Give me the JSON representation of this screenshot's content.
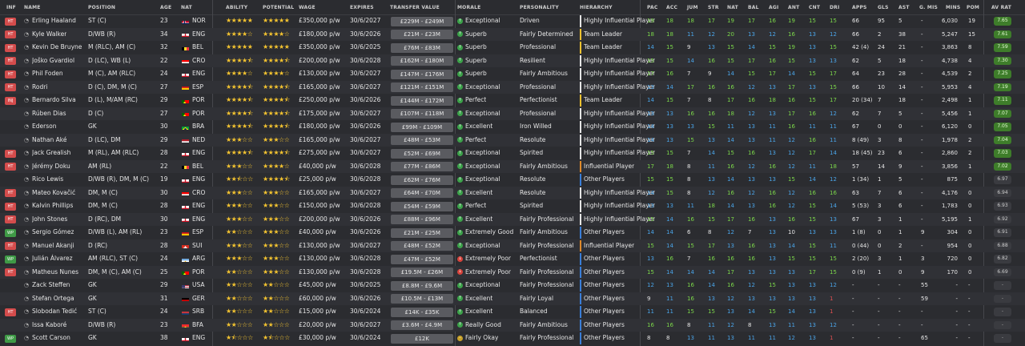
{
  "headers": {
    "inf": "INF",
    "name": "NAME",
    "position": "POSITION",
    "age": "AGE",
    "nat": "NAT",
    "ability": "ABILITY",
    "potential": "POTENTIAL",
    "wage": "WAGE",
    "expires": "EXPIRES",
    "transfer_value": "TRANSFER VALUE",
    "morale": "MORALE",
    "personality": "PERSONALITY",
    "hierarchy": "HIERARCHY",
    "pac": "PAC",
    "acc": "ACC",
    "jum": "JUM",
    "str": "STR",
    "nat2": "NAT",
    "bal": "BAL",
    "agi": "AGI",
    "ant": "ANT",
    "cnt": "CNT",
    "dri": "DRI",
    "apps": "APPS",
    "gls": "GLS",
    "ast": "AST",
    "gmis": "G. MIS",
    "mins": "MINS",
    "pom": "POM",
    "avrat": "AV RAT"
  },
  "colors": {
    "attr_green": "#7bd64a",
    "attr_blue": "#4aa3e6",
    "attr_white": "#e6e6e6",
    "attr_red": "#e05050",
    "star": "#f4c430",
    "hier_yellow": "#f2c230",
    "hier_orange": "#e08a2a",
    "hier_blue": "#3a7ed8",
    "hier_white": "#e6e6e6",
    "morale_green": "#3ca24a",
    "morale_red": "#d8443c",
    "morale_yellow": "#c8a22a",
    "inf_red": "#d44c4c",
    "inf_green": "#3f9a46"
  },
  "players": [
    {
      "inf": "HT",
      "name": "Erling Haaland",
      "pos": "ST (C)",
      "age": "23",
      "nat": "NOR",
      "ab": 5,
      "pot": 5,
      "wage": "£350,000 p/w",
      "exp": "30/6/2027",
      "tv": "£229M - £249M",
      "morale": "Exceptional",
      "personality": "Driven",
      "hier": "Highly Influential Player",
      "hier_color": "hier_white",
      "attrs": [
        "19",
        "18",
        "18",
        "17",
        "19",
        "17",
        "16",
        "19",
        "15",
        "15"
      ],
      "apps": "66",
      "gls": "95",
      "ast": "5",
      "gmis": "-",
      "mins": "6,030",
      "pom": "19",
      "avr": "7.65"
    },
    {
      "inf": "HT",
      "name": "Kyle Walker",
      "pos": "D/WB (R)",
      "age": "34",
      "nat": "ENG",
      "ab": 4,
      "pot": 4,
      "wage": "£180,000 p/w",
      "exp": "30/6/2026",
      "tv": "£21M - £23M",
      "morale": "Superb",
      "personality": "Fairly Determined",
      "hier": "Team Leader",
      "hier_color": "hier_yellow",
      "attrs": [
        "18",
        "18",
        "11",
        "12",
        "20",
        "13",
        "12",
        "16",
        "13",
        "12"
      ],
      "apps": "66",
      "gls": "2",
      "ast": "38",
      "gmis": "-",
      "mins": "5,247",
      "pom": "15",
      "avr": "7.61"
    },
    {
      "inf": "HT",
      "name": "Kevin De Bruyne",
      "pos": "M (RLC), AM (C)",
      "age": "32",
      "nat": "BEL",
      "ab": 5,
      "pot": 5,
      "wage": "£350,000 p/w",
      "exp": "30/6/2025",
      "tv": "£76M - £83M",
      "morale": "Superb",
      "personality": "Professional",
      "hier": "Team Leader",
      "hier_color": "hier_yellow",
      "attrs": [
        "14",
        "15",
        "9",
        "13",
        "15",
        "14",
        "15",
        "19",
        "13",
        "15"
      ],
      "apps": "42 (4)",
      "gls": "24",
      "ast": "21",
      "gmis": "-",
      "mins": "3,863",
      "pom": "8",
      "avr": "7.59"
    },
    {
      "inf": "HT",
      "name": "Joško Gvardiol",
      "pos": "D (LC), WB (L)",
      "age": "22",
      "nat": "CRO",
      "ab": 4.5,
      "pot": 4.5,
      "wage": "£200,000 p/w",
      "exp": "30/6/2028",
      "tv": "£162M - £180M",
      "morale": "Superb",
      "personality": "Resilient",
      "hier": "Highly Influential Player",
      "hier_color": "hier_white",
      "attrs": [
        "15",
        "15",
        "14",
        "16",
        "15",
        "17",
        "16",
        "15",
        "13",
        "13"
      ],
      "apps": "62",
      "gls": "5",
      "ast": "18",
      "gmis": "-",
      "mins": "4,738",
      "pom": "4",
      "avr": "7.30"
    },
    {
      "inf": "HT",
      "name": "Phil Foden",
      "pos": "M (C), AM (RLC)",
      "age": "24",
      "nat": "ENG",
      "ab": 4,
      "pot": 4,
      "wage": "£130,000 p/w",
      "exp": "30/6/2027",
      "tv": "£147M - £176M",
      "morale": "Superb",
      "personality": "Fairly Ambitious",
      "hier": "Highly Influential Player",
      "hier_color": "hier_white",
      "attrs": [
        "17",
        "16",
        "7",
        "9",
        "14",
        "15",
        "17",
        "14",
        "15",
        "17"
      ],
      "apps": "64",
      "gls": "23",
      "ast": "28",
      "gmis": "-",
      "mins": "4,539",
      "pom": "2",
      "avr": "7.25"
    },
    {
      "inf": "HT",
      "name": "Rodri",
      "pos": "D (C), DM, M (C)",
      "age": "27",
      "nat": "ESP",
      "ab": 4.5,
      "pot": 4.5,
      "wage": "£165,000 p/w",
      "exp": "30/6/2027",
      "tv": "£121M - £151M",
      "morale": "Exceptional",
      "personality": "Professional",
      "hier": "Highly Influential Player",
      "hier_color": "hier_white",
      "attrs": [
        "13",
        "14",
        "17",
        "16",
        "16",
        "12",
        "13",
        "17",
        "13",
        "15"
      ],
      "apps": "66",
      "gls": "10",
      "ast": "14",
      "gmis": "-",
      "mins": "5,953",
      "pom": "4",
      "avr": "7.19"
    },
    {
      "inf": "INJ",
      "name": "Bernardo Silva",
      "pos": "D (L), M/AM (RC)",
      "age": "29",
      "nat": "POR",
      "ab": 4.5,
      "pot": 4.5,
      "wage": "£250,000 p/w",
      "exp": "30/6/2026",
      "tv": "£144M - £172M",
      "morale": "Perfect",
      "personality": "Perfectionist",
      "hier": "Team Leader",
      "hier_color": "hier_yellow",
      "attrs": [
        "14",
        "15",
        "7",
        "8",
        "17",
        "16",
        "18",
        "16",
        "15",
        "17"
      ],
      "apps": "20 (34)",
      "gls": "7",
      "ast": "18",
      "gmis": "-",
      "mins": "2,498",
      "pom": "1",
      "avr": "7.11"
    },
    {
      "inf": "",
      "name": "Rúben Dias",
      "pos": "D (C)",
      "age": "27",
      "nat": "POR",
      "ab": 4.5,
      "pot": 4.5,
      "wage": "£175,000 p/w",
      "exp": "30/6/2027",
      "tv": "£107M - £118M",
      "morale": "Exceptional",
      "personality": "Professional",
      "hier": "Highly Influential Player",
      "hier_color": "hier_white",
      "attrs": [
        "13",
        "13",
        "16",
        "16",
        "18",
        "12",
        "13",
        "17",
        "16",
        "12"
      ],
      "apps": "62",
      "gls": "7",
      "ast": "5",
      "gmis": "-",
      "mins": "5,456",
      "pom": "1",
      "avr": "7.07"
    },
    {
      "inf": "",
      "name": "Ederson",
      "pos": "GK",
      "age": "30",
      "nat": "BRA",
      "ab": 4.5,
      "pot": 4.5,
      "wage": "£180,000 p/w",
      "exp": "30/6/2026",
      "tv": "£99M - £109M",
      "morale": "Excellent",
      "personality": "Iron Willed",
      "hier": "Highly Influential Player",
      "hier_color": "hier_white",
      "attrs": [
        "14",
        "13",
        "13",
        "15",
        "11",
        "13",
        "11",
        "16",
        "11",
        "11"
      ],
      "apps": "67",
      "gls": "0",
      "ast": "0",
      "gmis": "-",
      "mins": "6,120",
      "pom": "0",
      "avr": "7.05"
    },
    {
      "inf": "",
      "name": "Nathan Aké",
      "pos": "D (LC), DM",
      "age": "29",
      "nat": "NED",
      "ab": 3,
      "pot": 3,
      "wage": "£165,000 p/w",
      "exp": "30/6/2027",
      "tv": "£48M - £53M",
      "morale": "Perfect",
      "personality": "Resolute",
      "hier": "Highly Influential Player",
      "hier_color": "hier_white",
      "attrs": [
        "14",
        "13",
        "15",
        "13",
        "14",
        "13",
        "11",
        "12",
        "16",
        "11"
      ],
      "apps": "8 (49)",
      "gls": "3",
      "ast": "8",
      "gmis": "-",
      "mins": "1,978",
      "pom": "2",
      "avr": "7.04"
    },
    {
      "inf": "HT",
      "name": "Jack Grealish",
      "pos": "M (RL), AM (RLC)",
      "age": "28",
      "nat": "ENG",
      "ab": 4.5,
      "pot": 4.5,
      "wage": "£275,000 p/w",
      "exp": "30/6/2027",
      "tv": "£52M - £69M",
      "morale": "Exceptional",
      "personality": "Spirited",
      "hier": "Highly Influential Player",
      "hier_color": "hier_white",
      "attrs": [
        "15",
        "15",
        "7",
        "14",
        "15",
        "16",
        "13",
        "12",
        "17",
        "14"
      ],
      "apps": "18 (45)",
      "gls": "23",
      "ast": "6",
      "gmis": "-",
      "mins": "2,860",
      "pom": "2",
      "avr": "7.03"
    },
    {
      "inf": "HT",
      "name": "Jérémy Doku",
      "pos": "AM (RL)",
      "age": "22",
      "nat": "BEL",
      "ab": 3,
      "pot": 4,
      "wage": "£40,000 p/w",
      "exp": "30/6/2028",
      "tv": "£77M - £86M",
      "morale": "Exceptional",
      "personality": "Fairly Ambitious",
      "hier": "Influential Player",
      "hier_color": "hier_orange",
      "attrs": [
        "17",
        "18",
        "8",
        "11",
        "16",
        "12",
        "16",
        "12",
        "11",
        "18"
      ],
      "apps": "57",
      "gls": "14",
      "ast": "9",
      "gmis": "-",
      "mins": "3,856",
      "pom": "1",
      "avr": "7.02"
    },
    {
      "inf": "",
      "name": "Rico Lewis",
      "pos": "D/WB (R), DM, M (C)",
      "age": "19",
      "nat": "ENG",
      "ab": 2.5,
      "pot": 4.5,
      "wage": "£25,000 p/w",
      "exp": "30/6/2028",
      "tv": "£62M - £76M",
      "morale": "Exceptional",
      "personality": "Resolute",
      "hier": "Other Players",
      "hier_color": "hier_blue",
      "attrs": [
        "15",
        "15",
        "8",
        "13",
        "14",
        "13",
        "13",
        "15",
        "14",
        "12"
      ],
      "apps": "1 (34)",
      "gls": "1",
      "ast": "5",
      "gmis": "-",
      "mins": "875",
      "pom": "0",
      "avr": "6.97"
    },
    {
      "inf": "HT",
      "name": "Mateo Kovačić",
      "pos": "DM, M (C)",
      "age": "30",
      "nat": "CRO",
      "ab": 3,
      "pot": 3,
      "wage": "£165,000 p/w",
      "exp": "30/6/2027",
      "tv": "£64M - £70M",
      "morale": "Excellent",
      "personality": "Resolute",
      "hier": "Highly Influential Player",
      "hier_color": "hier_white",
      "attrs": [
        "14",
        "15",
        "8",
        "12",
        "16",
        "12",
        "16",
        "12",
        "16",
        "16"
      ],
      "apps": "63",
      "gls": "7",
      "ast": "6",
      "gmis": "-",
      "mins": "4,176",
      "pom": "0",
      "avr": "6.94"
    },
    {
      "inf": "HT",
      "name": "Kalvin Phillips",
      "pos": "DM, M (C)",
      "age": "28",
      "nat": "ENG",
      "ab": 3,
      "pot": 3,
      "wage": "£150,000 p/w",
      "exp": "30/6/2028",
      "tv": "£54M - £59M",
      "morale": "Perfect",
      "personality": "Spirited",
      "hier": "Highly Influential Player",
      "hier_color": "hier_white",
      "attrs": [
        "13",
        "13",
        "11",
        "18",
        "14",
        "13",
        "16",
        "12",
        "15",
        "14"
      ],
      "apps": "5 (53)",
      "gls": "3",
      "ast": "6",
      "gmis": "-",
      "mins": "1,783",
      "pom": "0",
      "avr": "6.93"
    },
    {
      "inf": "HT",
      "name": "John Stones",
      "pos": "D (RC), DM",
      "age": "30",
      "nat": "ENG",
      "ab": 3,
      "pot": 3,
      "wage": "£200,000 p/w",
      "exp": "30/6/2026",
      "tv": "£88M - £96M",
      "morale": "Excellent",
      "personality": "Fairly Professional",
      "hier": "Highly Influential Player",
      "hier_color": "hier_white",
      "attrs": [
        "15",
        "14",
        "16",
        "15",
        "17",
        "16",
        "13",
        "16",
        "15",
        "13"
      ],
      "apps": "67",
      "gls": "3",
      "ast": "1",
      "gmis": "-",
      "mins": "5,195",
      "pom": "1",
      "avr": "6.92"
    },
    {
      "inf": "WP",
      "name": "Sergio Gómez",
      "pos": "D/WB (L), AM (RL)",
      "age": "23",
      "nat": "ESP",
      "ab": 2,
      "pot": 3,
      "wage": "£40,000 p/w",
      "exp": "30/6/2026",
      "tv": "£21M - £25M",
      "morale": "Extremely Good",
      "personality": "Fairly Ambitious",
      "hier": "Other Players",
      "hier_color": "hier_blue",
      "attrs": [
        "14",
        "14",
        "6",
        "8",
        "12",
        "7",
        "13",
        "10",
        "13",
        "13"
      ],
      "apps": "1 (8)",
      "gls": "0",
      "ast": "1",
      "gmis": "9",
      "mins": "304",
      "pom": "0",
      "avr": "6.91"
    },
    {
      "inf": "HT",
      "name": "Manuel Akanji",
      "pos": "D (RC)",
      "age": "28",
      "nat": "SUI",
      "ab": 3,
      "pot": 3,
      "wage": "£130,000 p/w",
      "exp": "30/6/2027",
      "tv": "£48M - £52M",
      "morale": "Exceptional",
      "personality": "Fairly Professional",
      "hier": "Influential Player",
      "hier_color": "hier_orange",
      "attrs": [
        "15",
        "14",
        "15",
        "17",
        "13",
        "16",
        "13",
        "14",
        "15",
        "11"
      ],
      "apps": "0 (44)",
      "gls": "0",
      "ast": "2",
      "gmis": "-",
      "mins": "954",
      "pom": "0",
      "avr": "6.88"
    },
    {
      "inf": "WP",
      "name": "Julián Álvarez",
      "pos": "AM (RLC), ST (C)",
      "age": "24",
      "nat": "ARG",
      "ab": 3,
      "pot": 3,
      "wage": "£130,000 p/w",
      "exp": "30/6/2028",
      "tv": "£47M - £52M",
      "morale": "Extremely Poor",
      "personality": "Perfectionist",
      "hier": "Other Players",
      "hier_color": "hier_blue",
      "attrs": [
        "13",
        "16",
        "7",
        "16",
        "16",
        "16",
        "13",
        "15",
        "15",
        "15"
      ],
      "apps": "2 (20)",
      "gls": "3",
      "ast": "1",
      "gmis": "3",
      "mins": "720",
      "pom": "0",
      "avr": "6.82"
    },
    {
      "inf": "HT",
      "name": "Matheus Nunes",
      "pos": "DM, M (C), AM (C)",
      "age": "25",
      "nat": "POR",
      "ab": 2,
      "pot": 3,
      "wage": "£130,000 p/w",
      "exp": "30/6/2028",
      "tv": "£19.5M - £26M",
      "morale": "Extremely Poor",
      "personality": "Fairly Professional",
      "hier": "Other Players",
      "hier_color": "hier_blue",
      "attrs": [
        "15",
        "14",
        "14",
        "14",
        "17",
        "13",
        "13",
        "13",
        "17",
        "15"
      ],
      "apps": "0 (9)",
      "gls": "1",
      "ast": "0",
      "gmis": "9",
      "mins": "170",
      "pom": "0",
      "avr": "6.69"
    },
    {
      "inf": "",
      "name": "Zack Steffen",
      "pos": "GK",
      "age": "29",
      "nat": "USA",
      "ab": 2,
      "pot": 2,
      "wage": "£45,000 p/w",
      "exp": "30/6/2025",
      "tv": "£8.8M - £9.6M",
      "morale": "Exceptional",
      "personality": "Fairly Professional",
      "hier": "Other Players",
      "hier_color": "hier_blue",
      "attrs": [
        "12",
        "13",
        "16",
        "14",
        "16",
        "12",
        "15",
        "13",
        "13",
        "12"
      ],
      "apps": "-",
      "gls": "-",
      "ast": "-",
      "gmis": "55",
      "mins": "-",
      "pom": "-",
      "avr": "-"
    },
    {
      "inf": "",
      "name": "Stefan Ortega",
      "pos": "GK",
      "age": "31",
      "nat": "GER",
      "ab": 2,
      "pot": 2,
      "wage": "£60,000 p/w",
      "exp": "30/6/2026",
      "tv": "£10.5M - £13M",
      "morale": "Excellent",
      "personality": "Fairly Loyal",
      "hier": "Other Players",
      "hier_color": "hier_blue",
      "attrs": [
        "9",
        "11",
        "16",
        "13",
        "12",
        "13",
        "13",
        "13",
        "13",
        "1"
      ],
      "apps": "-",
      "gls": "-",
      "ast": "-",
      "gmis": "59",
      "mins": "-",
      "pom": "-",
      "avr": "-"
    },
    {
      "inf": "HT",
      "name": "Slobodan Tedić",
      "pos": "ST (C)",
      "age": "24",
      "nat": "SRB",
      "ab": 2,
      "pot": 2,
      "wage": "£15,000 p/w",
      "exp": "30/6/2024",
      "tv": "£14K - £35K",
      "morale": "Excellent",
      "personality": "Balanced",
      "hier": "Other Players",
      "hier_color": "hier_blue",
      "attrs": [
        "11",
        "11",
        "15",
        "15",
        "13",
        "14",
        "15",
        "14",
        "13",
        "1"
      ],
      "apps": "-",
      "gls": "-",
      "ast": "-",
      "gmis": "-",
      "mins": "-",
      "pom": "-",
      "avr": "-"
    },
    {
      "inf": "",
      "name": "Issa Kaboré",
      "pos": "D/WB (R)",
      "age": "23",
      "nat": "BFA",
      "ab": 2,
      "pot": 2,
      "wage": "£20,000 p/w",
      "exp": "30/6/2027",
      "tv": "£3.6M - £4.9M",
      "morale": "Really Good",
      "personality": "Fairly Ambitious",
      "hier": "Other Players",
      "hier_color": "hier_blue",
      "attrs": [
        "16",
        "16",
        "8",
        "11",
        "12",
        "8",
        "13",
        "11",
        "13",
        "12"
      ],
      "apps": "-",
      "gls": "-",
      "ast": "-",
      "gmis": "-",
      "mins": "-",
      "pom": "-",
      "avr": "-"
    },
    {
      "inf": "WP",
      "name": "Scott Carson",
      "pos": "GK",
      "age": "38",
      "nat": "ENG",
      "ab": 1.5,
      "pot": 1.5,
      "wage": "£30,000 p/w",
      "exp": "30/6/2024",
      "tv": "£12K",
      "morale": "Fairly Okay",
      "personality": "Fairly Professional",
      "hier": "Other Players",
      "hier_color": "hier_blue",
      "attrs": [
        "8",
        "8",
        "13",
        "11",
        "13",
        "11",
        "11",
        "12",
        "13",
        "1"
      ],
      "apps": "-",
      "gls": "-",
      "ast": "-",
      "gmis": "65",
      "mins": "-",
      "pom": "-",
      "avr": "-"
    }
  ]
}
